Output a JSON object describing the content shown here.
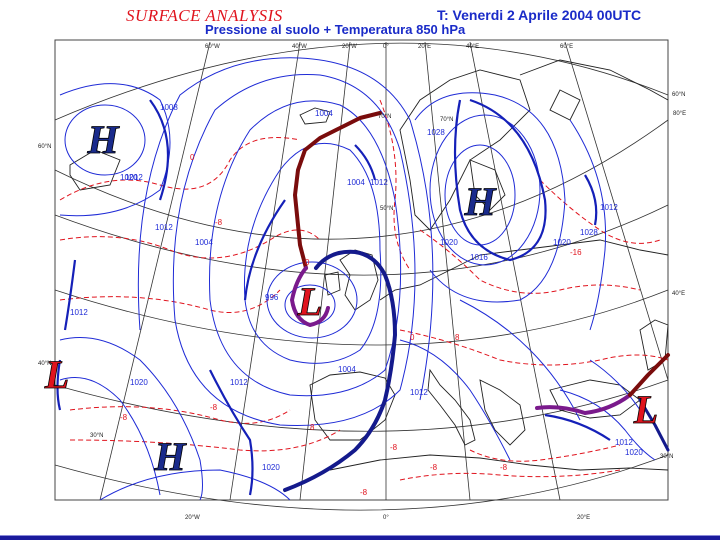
{
  "header": {
    "title_left": "SURFACE ANALYSIS",
    "title_right": "T: Venerdi 2 Aprile 2004 00UTC",
    "subtitle": "Pressione al suolo + Temperatura 850 hPa"
  },
  "pressure_centers": [
    {
      "type": "H",
      "color": "#1a2b8c"
    },
    {
      "type": "H",
      "color": "#1a2b8c"
    },
    {
      "type": "H",
      "color": "#1a2b8c"
    },
    {
      "type": "L",
      "color": "#e0141e"
    },
    {
      "type": "L",
      "color": "#e0141e"
    },
    {
      "type": "L",
      "color": "#e0141e"
    }
  ],
  "isobar_labels": [
    "1004",
    "1008",
    "1012",
    "1004",
    "1020",
    "1012",
    "1004",
    "996",
    "1012",
    "1020",
    "1012",
    "1004",
    "1012",
    "1020",
    "1028",
    "1020",
    "1020",
    "1028",
    "1012",
    "1016",
    "1012",
    "1020",
    "1012"
  ],
  "temperature_labels": [
    "0",
    "-8",
    "-8",
    "-8",
    "0",
    "8",
    "-8",
    "-16",
    "-8",
    "0",
    "8",
    "-8",
    "-8"
  ],
  "grid_labels": [
    "60°W",
    "40°W",
    "20°W",
    "0°",
    "20°E",
    "40°E",
    "60°E",
    "80°E",
    "60°N",
    "60°N",
    "50°N",
    "40°E",
    "40°N",
    "30°N",
    "30°N",
    "20°W",
    "0°",
    "20°E",
    "70°N",
    "70°N"
  ],
  "colors": {
    "isobar": "#1f2bd6",
    "isobar_thick": "#1520b8",
    "isotherm": "#e0141e",
    "grid": "#333333",
    "coast": "#222222",
    "warm_front": "#7a0c0c",
    "cold_front": "#141a8c",
    "occluded_front": "#7a1a8c"
  }
}
